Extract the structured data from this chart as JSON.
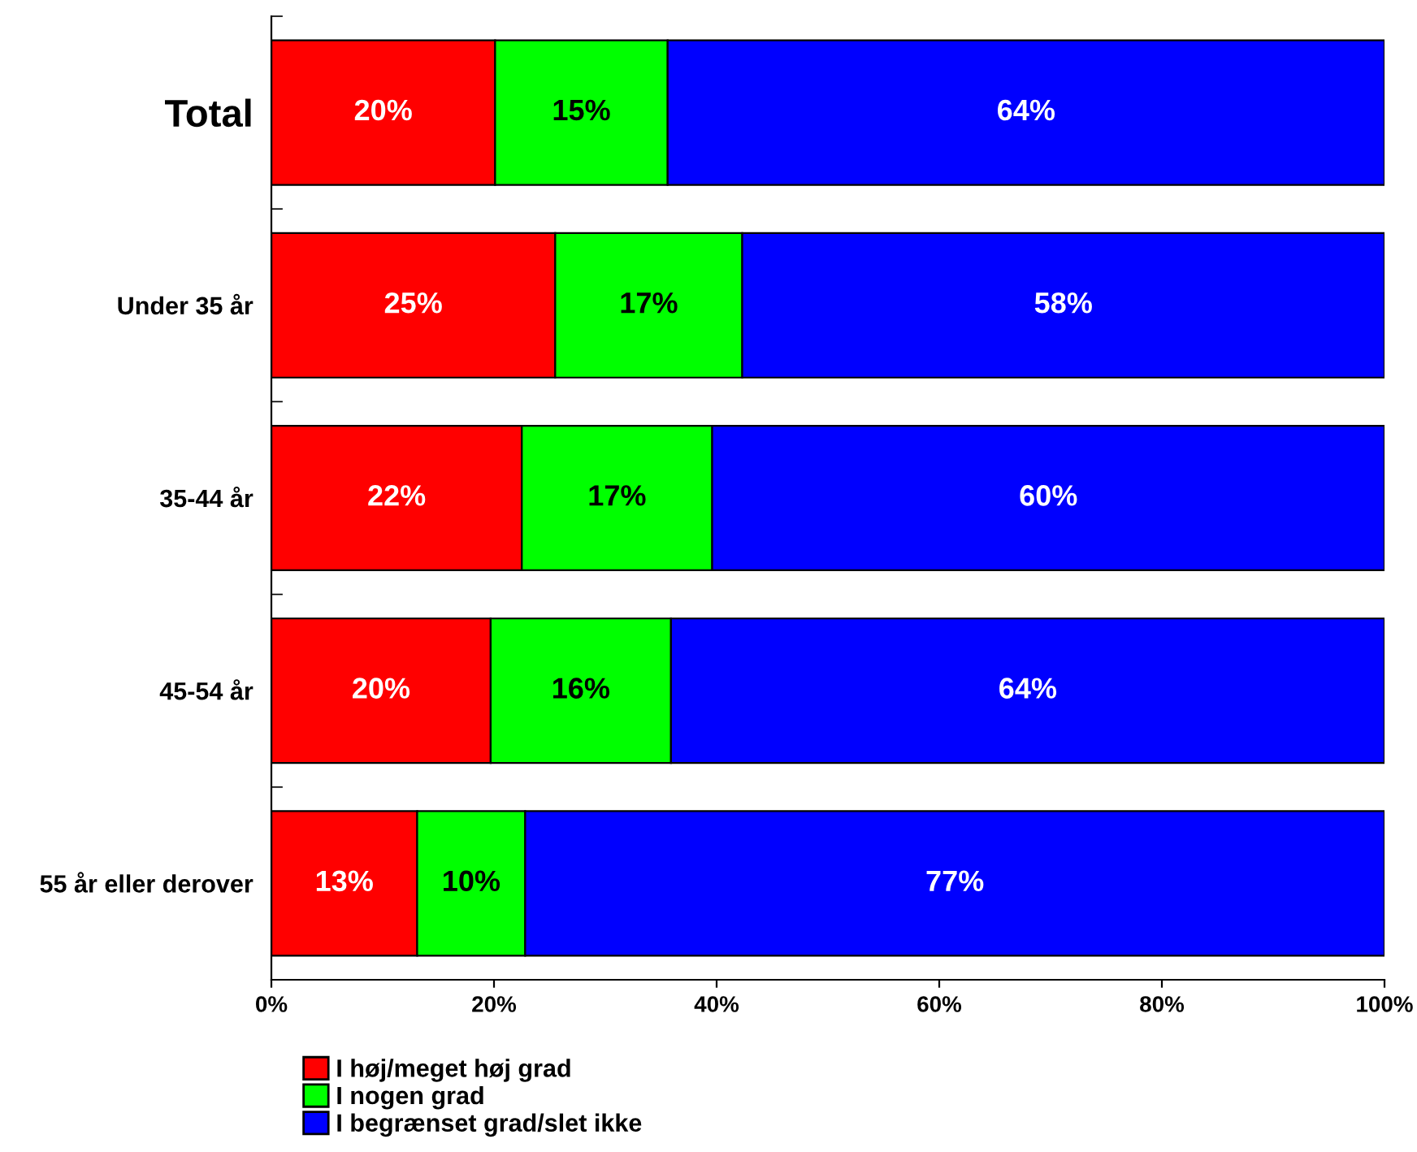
{
  "chart_data": {
    "type": "bar",
    "orientation": "horizontal",
    "stacked": true,
    "legend": "bottom left",
    "grid": false,
    "categories": [
      "Total",
      "Under 35 år",
      "35-44 år",
      "45-54 år",
      "55 år eller derover"
    ],
    "series": [
      {
        "name": "I høj/meget høj grad",
        "color": "#ff0000",
        "values": [
          20.1,
          25.5,
          22.5,
          19.7,
          13.1
        ],
        "value_labels": [
          "20%",
          "25%",
          "22%",
          "20%",
          "13%"
        ]
      },
      {
        "name": "I nogen grad",
        "color": "#00ff00",
        "values": [
          15.5,
          16.8,
          17.1,
          16.2,
          9.7
        ],
        "value_labels": [
          "15%",
          "17%",
          "17%",
          "16%",
          "10%"
        ]
      },
      {
        "name": "I begrænset grad/slet ikke",
        "color": "#0000ff",
        "values": [
          64.4,
          57.7,
          60.4,
          64.1,
          77.2
        ],
        "value_labels": [
          "64%",
          "58%",
          "60%",
          "64%",
          "77%"
        ]
      }
    ],
    "xlim": [
      0,
      100
    ],
    "xticks": [
      {
        "value": 0,
        "label": "0%"
      },
      {
        "value": 20,
        "label": "20%"
      },
      {
        "value": 40,
        "label": "40%"
      },
      {
        "value": 60,
        "label": "60%"
      },
      {
        "value": 80,
        "label": "80%"
      },
      {
        "value": 100,
        "label": "100%"
      }
    ]
  }
}
